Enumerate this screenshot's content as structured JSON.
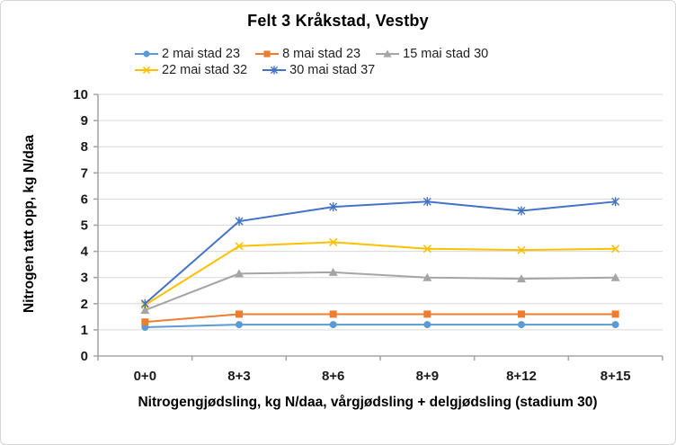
{
  "chart_data": {
    "type": "line",
    "title": "Felt 3 Kråkstad, Vestby",
    "xlabel": "Nitrogengjødsling, kg N/daa, vårgjødsling + delgjødsling (stadium 30)",
    "ylabel": "Nitrogen tatt opp, kg N/daa",
    "ylim": [
      0,
      10
    ],
    "ytick_step": 1,
    "grid": true,
    "legend_position": "top",
    "categories": [
      "0+0",
      "8+3",
      "8+6",
      "8+9",
      "8+12",
      "8+15"
    ],
    "series": [
      {
        "name": "2 mai stad 23",
        "color": "#5B9BD5",
        "marker": "circle",
        "values": [
          1.1,
          1.2,
          1.2,
          1.2,
          1.2,
          1.2
        ]
      },
      {
        "name": "8 mai stad 23",
        "color": "#ED7D31",
        "marker": "square",
        "values": [
          1.3,
          1.6,
          1.6,
          1.6,
          1.6,
          1.6
        ]
      },
      {
        "name": "15 mai stad 30",
        "color": "#A5A5A5",
        "marker": "triangle",
        "values": [
          1.75,
          3.15,
          3.2,
          3.0,
          2.95,
          3.0
        ]
      },
      {
        "name": "22 mai stad 32",
        "color": "#FFC000",
        "marker": "x",
        "values": [
          1.95,
          4.2,
          4.35,
          4.1,
          4.05,
          4.1
        ]
      },
      {
        "name": "30 mai stad 37",
        "color": "#4472C4",
        "marker": "asterisk",
        "values": [
          2.0,
          5.15,
          5.7,
          5.9,
          5.55,
          5.9
        ]
      }
    ],
    "colors": {
      "gridline": "#D9D9D9",
      "axis": "#A6A6A6",
      "text": "#1a1a1a"
    }
  }
}
